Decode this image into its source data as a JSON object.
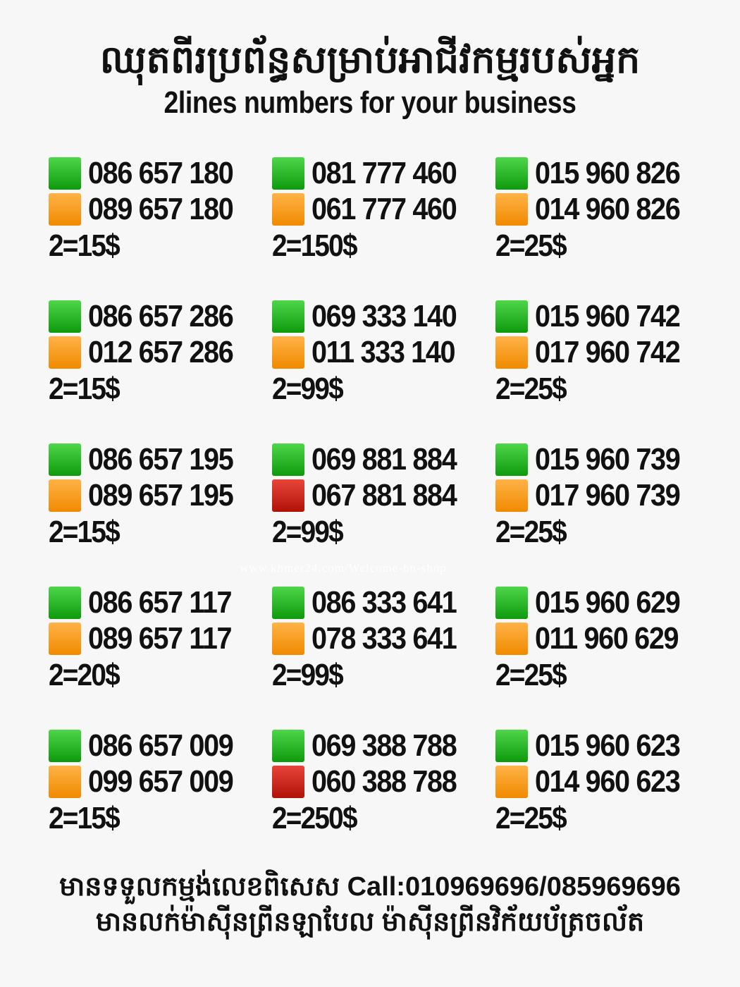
{
  "header": {
    "title_kh": "ឈុតពីរប្រព័ន្ធសម្រាប់អាជីវកម្មរបស់អ្នក",
    "title_en": "2lines numbers for your business"
  },
  "colors": {
    "green": "#1fae1c",
    "orange": "#ff9a1e",
    "red": "#c81e12"
  },
  "offers": [
    {
      "lines": [
        {
          "number": "086 657 180",
          "color": "green"
        },
        {
          "number": "089 657 180",
          "color": "orange"
        }
      ],
      "price": "2=15$"
    },
    {
      "lines": [
        {
          "number": "081 777 460",
          "color": "green"
        },
        {
          "number": "061 777 460",
          "color": "orange"
        }
      ],
      "price": "2=150$"
    },
    {
      "lines": [
        {
          "number": "015 960 826",
          "color": "green"
        },
        {
          "number": "014 960 826",
          "color": "orange"
        }
      ],
      "price": "2=25$"
    },
    {
      "lines": [
        {
          "number": "086 657 286",
          "color": "green"
        },
        {
          "number": "012 657 286",
          "color": "orange"
        }
      ],
      "price": "2=15$"
    },
    {
      "lines": [
        {
          "number": "069 333 140",
          "color": "green"
        },
        {
          "number": "011 333 140",
          "color": "orange"
        }
      ],
      "price": "2=99$"
    },
    {
      "lines": [
        {
          "number": "015 960 742",
          "color": "green"
        },
        {
          "number": "017 960 742",
          "color": "orange"
        }
      ],
      "price": "2=25$"
    },
    {
      "lines": [
        {
          "number": "086 657 195",
          "color": "green"
        },
        {
          "number": "089 657 195",
          "color": "orange"
        }
      ],
      "price": "2=15$"
    },
    {
      "lines": [
        {
          "number": "069 881 884",
          "color": "green"
        },
        {
          "number": "067 881 884",
          "color": "red"
        }
      ],
      "price": "2=99$"
    },
    {
      "lines": [
        {
          "number": "015 960 739",
          "color": "green"
        },
        {
          "number": "017 960 739",
          "color": "orange"
        }
      ],
      "price": "2=25$"
    },
    {
      "lines": [
        {
          "number": "086 657 117",
          "color": "green"
        },
        {
          "number": "089 657 117",
          "color": "orange"
        }
      ],
      "price": "2=20$"
    },
    {
      "lines": [
        {
          "number": "086 333 641",
          "color": "green"
        },
        {
          "number": "078 333 641",
          "color": "orange"
        }
      ],
      "price": "2=99$"
    },
    {
      "lines": [
        {
          "number": "015 960 629",
          "color": "green"
        },
        {
          "number": "011 960 629",
          "color": "orange"
        }
      ],
      "price": "2=25$"
    },
    {
      "lines": [
        {
          "number": "086 657 009",
          "color": "green"
        },
        {
          "number": "099 657 009",
          "color": "orange"
        }
      ],
      "price": "2=15$"
    },
    {
      "lines": [
        {
          "number": "069 388 788",
          "color": "green"
        },
        {
          "number": "060 388 788",
          "color": "red"
        }
      ],
      "price": "2=250$"
    },
    {
      "lines": [
        {
          "number": "015 960 623",
          "color": "green"
        },
        {
          "number": "014 960 623",
          "color": "orange"
        }
      ],
      "price": "2=25$"
    }
  ],
  "watermark": "www.khmer24.com/Welcome-bn-shop",
  "footer": {
    "line1": "មានទទួលកម្មង់លេខពិសេស Call:010969696/085969696",
    "line2": "មានលក់ម៉ាស៊ីនព្រីនឡាបែល ម៉ាស៊ីនព្រីនវិក័យប័ត្រចល័ត"
  }
}
